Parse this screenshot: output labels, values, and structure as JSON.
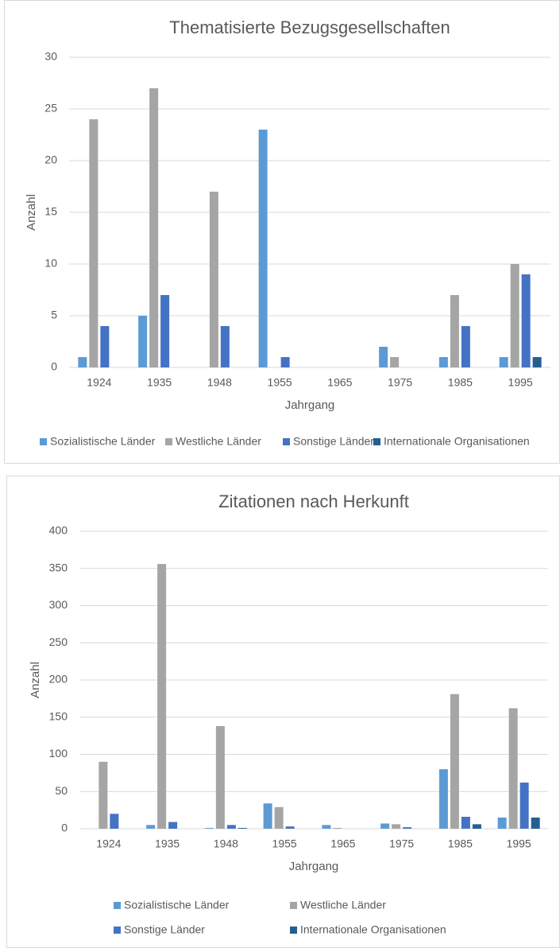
{
  "chart_data": [
    {
      "type": "bar",
      "title": "Thematisierte Bezugsgesellschaften",
      "x_label": "Jahrgang",
      "y_label": "Anzahl",
      "categories": [
        "1924",
        "1935",
        "1948",
        "1955",
        "1965",
        "1975",
        "1985",
        "1995"
      ],
      "series": [
        {
          "name": "Sozialistische Länder",
          "color": "#5b9bd5",
          "values": [
            1,
            5,
            0,
            23,
            0,
            2,
            1,
            1
          ]
        },
        {
          "name": "Westliche Länder",
          "color": "#a5a5a5",
          "values": [
            24,
            27,
            17,
            0,
            0,
            1,
            7,
            10
          ]
        },
        {
          "name": "Sonstige Länder",
          "color": "#4472c4",
          "values": [
            4,
            7,
            4,
            1,
            0,
            0,
            4,
            9
          ]
        },
        {
          "name": "Internationale Organisationen",
          "color": "#255e91",
          "values": [
            0,
            0,
            0,
            0,
            0,
            0,
            0,
            1
          ]
        }
      ],
      "ylim": [
        0,
        30
      ],
      "yticks": [
        0,
        5,
        10,
        15,
        20,
        25,
        30
      ],
      "grid": true,
      "legend": "bottom"
    },
    {
      "type": "bar",
      "title": "Zitationen nach Herkunft",
      "x_label": "Jahrgang",
      "y_label": "Anzahl",
      "categories": [
        "1924",
        "1935",
        "1948",
        "1955",
        "1965",
        "1975",
        "1985",
        "1995"
      ],
      "series": [
        {
          "name": "Sozialistische Länder",
          "color": "#5b9bd5",
          "values": [
            0,
            5,
            1,
            34,
            5,
            7,
            80,
            15
          ]
        },
        {
          "name": "Westliche Länder",
          "color": "#a5a5a5",
          "values": [
            90,
            356,
            138,
            29,
            1,
            6,
            181,
            162
          ]
        },
        {
          "name": "Sonstige Länder",
          "color": "#4472c4",
          "values": [
            20,
            9,
            5,
            3,
            0,
            2,
            16,
            62
          ]
        },
        {
          "name": "Internationale Organisationen",
          "color": "#255e91",
          "values": [
            0,
            0,
            1,
            0,
            0,
            0,
            6,
            15
          ]
        }
      ],
      "ylim": [
        0,
        400
      ],
      "yticks": [
        0,
        50,
        100,
        150,
        200,
        250,
        300,
        350,
        400
      ],
      "grid": true,
      "legend": "bottom"
    }
  ]
}
